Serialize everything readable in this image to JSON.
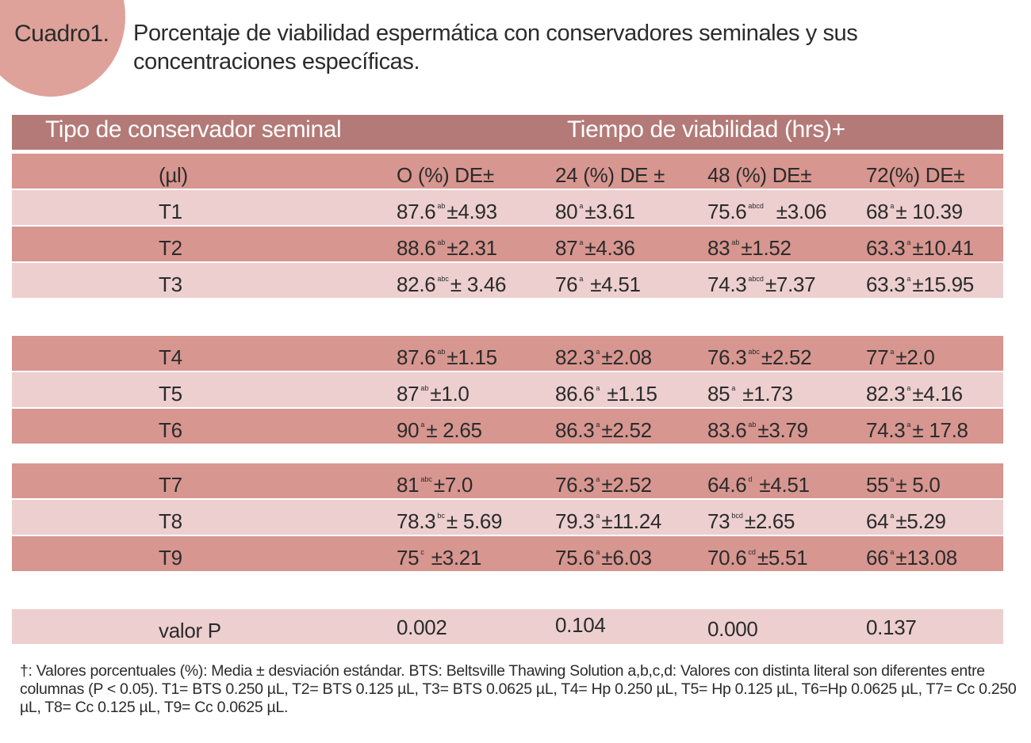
{
  "cuadro_label": "Cuadro1.",
  "caption": "Porcentaje de viabilidad espermática con conservadores seminales y sus concentraciones específicas.",
  "table": {
    "header": {
      "col_conservador": "Tipo de conservador seminal",
      "col_tiempo": "Tiempo de viabilidad (hrs)+"
    },
    "subheader": [
      "(µl)",
      "O (%) DE±",
      "24 (%) DE ±",
      "48 (%) DE±",
      "72(%) DE±"
    ],
    "rows": [
      {
        "label": "T1",
        "cells": [
          {
            "v": "87.6",
            "s": "ab",
            "r": "±4.93"
          },
          {
            "v": "80",
            "s": "a",
            "r": "±3.61"
          },
          {
            "v": "75.6",
            "s": "abcd",
            "r": "  ±3.06"
          },
          {
            "v": "68",
            "s": "a",
            "r": "± 10.39"
          }
        ]
      },
      {
        "label": "T2",
        "cells": [
          {
            "v": "88.6",
            "s": "ab",
            "r": "±2.31"
          },
          {
            "v": "87",
            "s": "a",
            "r": "±4.36"
          },
          {
            "v": "83",
            "s": "ab",
            "r": "±1.52"
          },
          {
            "v": "63.3",
            "s": "a",
            "r": "±10.41"
          }
        ]
      },
      {
        "label": "T3",
        "cells": [
          {
            "v": "82.6",
            "s": "abc",
            "r": "± 3.46"
          },
          {
            "v": "76",
            "s": "a",
            "r": " ±4.51"
          },
          {
            "v": "74.3",
            "s": "abcd",
            "r": "±7.37"
          },
          {
            "v": "63.3",
            "s": "a",
            "r": "±15.95"
          }
        ]
      },
      {
        "label": "T4",
        "cells": [
          {
            "v": "87.6",
            "s": "ab",
            "r": "±1.15"
          },
          {
            "v": "82.3",
            "s": "a",
            "r": "±2.08"
          },
          {
            "v": "76.3",
            "s": "abc",
            "r": "±2.52"
          },
          {
            "v": "77",
            "s": "a",
            "r": "±2.0"
          }
        ]
      },
      {
        "label": "T5",
        "cells": [
          {
            "v": "87",
            "s": "ab",
            "r": "±1.0"
          },
          {
            "v": "86.6",
            "s": "a",
            "r": " ±1.15"
          },
          {
            "v": "85",
            "s": "a",
            "r": " ±1.73"
          },
          {
            "v": "82.3",
            "s": "a",
            "r": "±4.16"
          }
        ]
      },
      {
        "label": "T6",
        "cells": [
          {
            "v": "90",
            "s": "a",
            "r": "± 2.65"
          },
          {
            "v": "86.3",
            "s": "a",
            "r": "±2.52"
          },
          {
            "v": "83.6",
            "s": "ab",
            "r": "±3.79"
          },
          {
            "v": "74.3",
            "s": "a",
            "r": "± 17.8"
          }
        ]
      },
      {
        "label": "T7",
        "cells": [
          {
            "v": "81",
            "s": "abc",
            "r": "±7.0"
          },
          {
            "v": "76.3",
            "s": "a",
            "r": "±2.52"
          },
          {
            "v": "64.6",
            "s": "d",
            "r": " ±4.51"
          },
          {
            "v": "55",
            "s": "a",
            "r": "± 5.0"
          }
        ]
      },
      {
        "label": "T8",
        "cells": [
          {
            "v": "78.3",
            "s": "bc",
            "r": "± 5.69"
          },
          {
            "v": "79.3",
            "s": "a",
            "r": "±11.24"
          },
          {
            "v": "73",
            "s": "bcd",
            "r": "±2.65"
          },
          {
            "v": "64",
            "s": "a",
            "r": "±5.29"
          }
        ]
      },
      {
        "label": "T9",
        "cells": [
          {
            "v": "75",
            "s": "c",
            "r": " ±3.21"
          },
          {
            "v": "75.6",
            "s": "a",
            "r": "±6.03"
          },
          {
            "v": "70.6",
            "s": "cd",
            "r": "±5.51"
          },
          {
            "v": "66",
            "s": "a",
            "r": "±13.08"
          }
        ]
      }
    ],
    "pvalue": {
      "label": "valor P",
      "values": [
        "0.002",
        "0.104",
        "0.000",
        "0.137"
      ]
    }
  },
  "footnote": "†: Valores porcentuales (%): Media ± desviación estándar. BTS: Beltsville Thawing Solution a,b,c,d: Valores con distinta literal son diferentes entre columnas (P < 0.05). T1= BTS 0.250 µL, T2= BTS 0.125 µL, T3= BTS 0.0625 µL, T4= Hp 0.250 µL, T5= Hp 0.125 µL, T6=Hp 0.0625 µL, T7= Cc 0.250 µL, T8= Cc 0.125 µL, T9= Cc 0.0625 µL.",
  "colors": {
    "header_bg": "#b37a77",
    "row_dark": "#d79690",
    "row_light": "#edcfcf",
    "circle": "#dea29a"
  }
}
